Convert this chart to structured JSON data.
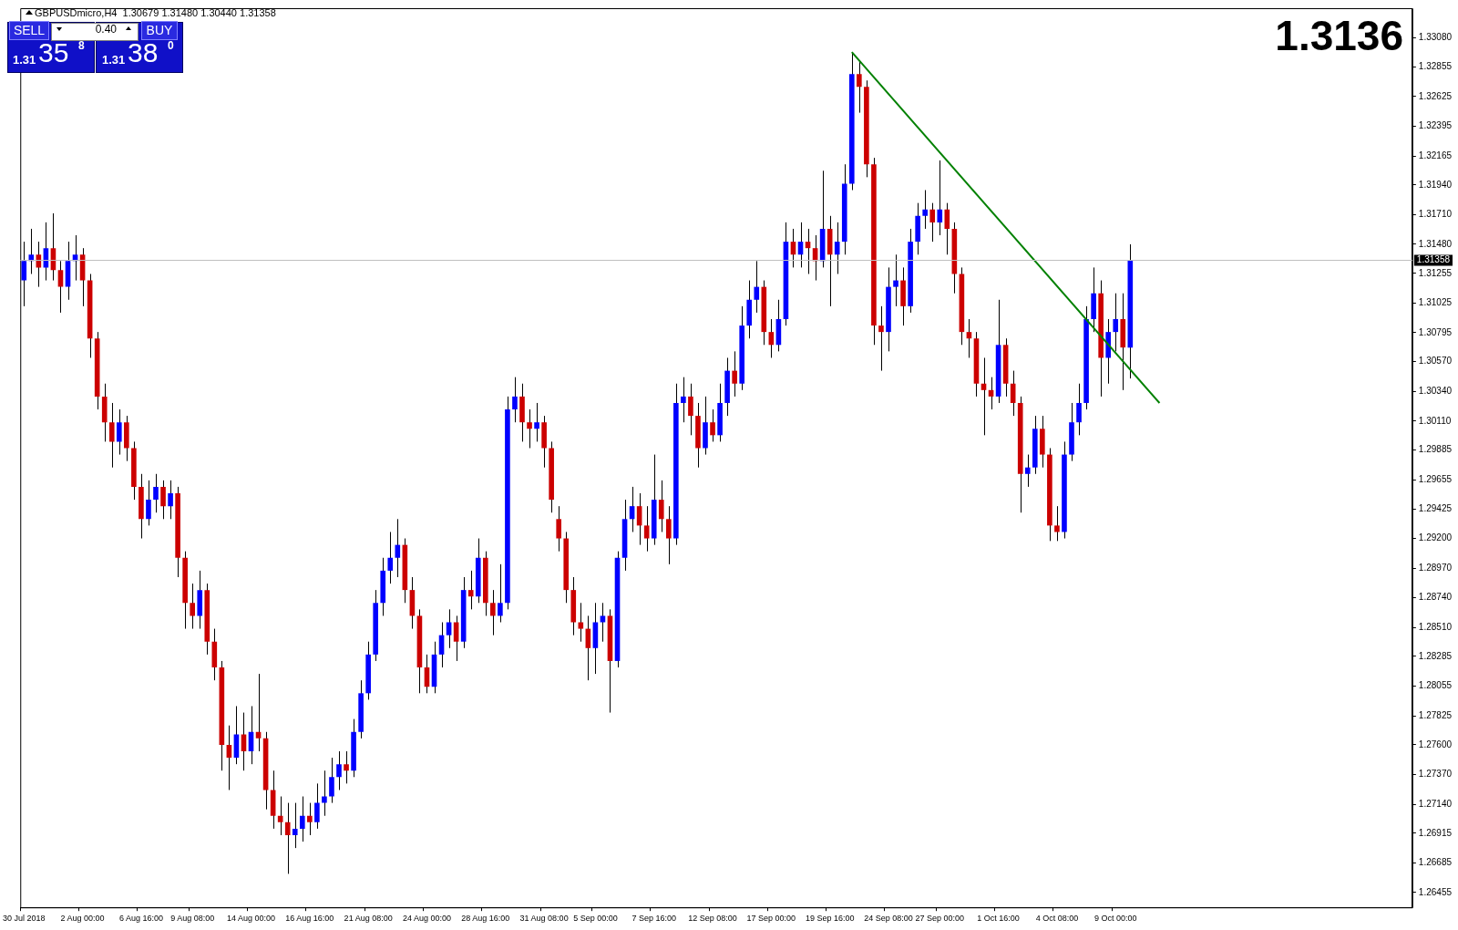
{
  "chart_data": {
    "type": "candlestick",
    "title": "GBPUSDmicro,H4  1.30679 1.31480 1.30440 1.31358",
    "categories": [
      "30 Jul 2018",
      null,
      null,
      null,
      null,
      null,
      null,
      null,
      "2 Aug 00:00",
      null,
      null,
      null,
      null,
      null,
      null,
      null,
      "6 Aug 16:00",
      null,
      null,
      null,
      null,
      null,
      null,
      "9 Aug 08:00",
      null,
      null,
      null,
      null,
      null,
      null,
      null,
      "14 Aug 00:00",
      null,
      null,
      null,
      null,
      null,
      null,
      null,
      "16 Aug 16:00",
      null,
      null,
      null,
      null,
      null,
      null,
      null,
      "21 Aug 08:00",
      null,
      null,
      null,
      null,
      null,
      null,
      null,
      "24 Aug 00:00",
      null,
      null,
      null,
      null,
      null,
      null,
      null,
      "28 Aug 16:00",
      null,
      null,
      null,
      null,
      null,
      null,
      null,
      "31 Aug 08:00",
      null,
      null,
      null,
      null,
      null,
      null,
      "5 Sep 00:00",
      null,
      null,
      null,
      null,
      null,
      null,
      null,
      "7 Sep 16:00",
      null,
      null,
      null,
      null,
      null,
      null,
      null,
      "12 Sep 08:00",
      null,
      null,
      null,
      null,
      null,
      null,
      null,
      "17 Sep 00:00",
      null,
      null,
      null,
      null,
      null,
      null,
      null,
      "19 Sep 16:00",
      null,
      null,
      null,
      null,
      null,
      null,
      null,
      "24 Sep 08:00",
      null,
      null,
      null,
      null,
      null,
      null,
      "27 Sep 00:00",
      null,
      null,
      null,
      null,
      null,
      null,
      null,
      "1 Oct 16:00",
      null,
      null,
      null,
      null,
      null,
      null,
      null,
      "4 Oct 08:00",
      null,
      null,
      null,
      null,
      null,
      null,
      null,
      "9 Oct 00:00",
      null,
      null,
      null,
      null,
      null,
      null,
      null,
      null,
      null,
      null,
      null,
      null,
      null,
      null,
      null,
      null,
      null,
      null,
      null,
      null,
      null,
      null,
      null,
      null,
      null,
      null,
      null,
      null,
      null,
      null,
      null,
      null,
      null,
      null,
      null,
      null,
      null,
      null,
      null,
      null
    ],
    "ohlc": [
      [
        1.312,
        1.315,
        1.31,
        1.3135
      ],
      [
        1.3135,
        1.316,
        1.3125,
        1.314
      ],
      [
        1.314,
        1.315,
        1.3115,
        1.313
      ],
      [
        1.313,
        1.3165,
        1.312,
        1.3145
      ],
      [
        1.3145,
        1.3172,
        1.312,
        1.3128
      ],
      [
        1.3128,
        1.3135,
        1.3095,
        1.3115
      ],
      [
        1.3115,
        1.315,
        1.3105,
        1.3135
      ],
      [
        1.3135,
        1.3155,
        1.312,
        1.314
      ],
      [
        1.314,
        1.3145,
        1.31,
        1.312
      ],
      [
        1.312,
        1.3125,
        1.306,
        1.3075
      ],
      [
        1.3075,
        1.308,
        1.302,
        1.303
      ],
      [
        1.303,
        1.304,
        1.2995,
        1.301
      ],
      [
        1.301,
        1.3025,
        1.2975,
        1.2995
      ],
      [
        1.2995,
        1.302,
        1.2985,
        1.301
      ],
      [
        1.301,
        1.3015,
        1.298,
        1.299
      ],
      [
        1.299,
        1.2995,
        1.295,
        1.296
      ],
      [
        1.296,
        1.297,
        1.292,
        1.2935
      ],
      [
        1.2935,
        1.2965,
        1.293,
        1.295
      ],
      [
        1.295,
        1.297,
        1.294,
        1.296
      ],
      [
        1.296,
        1.2965,
        1.2935,
        1.2945
      ],
      [
        1.2945,
        1.2965,
        1.2935,
        1.2955
      ],
      [
        1.2955,
        1.296,
        1.289,
        1.2905
      ],
      [
        1.2905,
        1.291,
        1.285,
        1.287
      ],
      [
        1.287,
        1.2885,
        1.285,
        1.286
      ],
      [
        1.286,
        1.2895,
        1.285,
        1.288
      ],
      [
        1.288,
        1.2885,
        1.283,
        1.284
      ],
      [
        1.284,
        1.285,
        1.281,
        1.282
      ],
      [
        1.282,
        1.2825,
        1.274,
        1.276
      ],
      [
        1.276,
        1.2775,
        1.2725,
        1.275
      ],
      [
        1.275,
        1.279,
        1.2745,
        1.2768
      ],
      [
        1.2768,
        1.2785,
        1.274,
        1.2755
      ],
      [
        1.2755,
        1.279,
        1.2745,
        1.277
      ],
      [
        1.277,
        1.2815,
        1.2755,
        1.2765
      ],
      [
        1.2765,
        1.277,
        1.271,
        1.2725
      ],
      [
        1.2725,
        1.274,
        1.2695,
        1.2705
      ],
      [
        1.2705,
        1.272,
        1.269,
        1.27
      ],
      [
        1.27,
        1.2715,
        1.266,
        1.269
      ],
      [
        1.269,
        1.2715,
        1.268,
        1.2695
      ],
      [
        1.2695,
        1.272,
        1.2685,
        1.2705
      ],
      [
        1.2705,
        1.2715,
        1.269,
        1.27
      ],
      [
        1.27,
        1.273,
        1.2695,
        1.2715
      ],
      [
        1.2715,
        1.274,
        1.2705,
        1.272
      ],
      [
        1.272,
        1.275,
        1.2715,
        1.2735
      ],
      [
        1.2735,
        1.2755,
        1.2725,
        1.2745
      ],
      [
        1.2745,
        1.2755,
        1.273,
        1.274
      ],
      [
        1.274,
        1.278,
        1.2735,
        1.277
      ],
      [
        1.277,
        1.281,
        1.2765,
        1.28
      ],
      [
        1.28,
        1.284,
        1.2795,
        1.283
      ],
      [
        1.283,
        1.288,
        1.2825,
        1.287
      ],
      [
        1.287,
        1.2905,
        1.286,
        1.2895
      ],
      [
        1.2895,
        1.2925,
        1.2885,
        1.2905
      ],
      [
        1.2905,
        1.2935,
        1.289,
        1.2915
      ],
      [
        1.2915,
        1.292,
        1.287,
        1.288
      ],
      [
        1.288,
        1.289,
        1.285,
        1.286
      ],
      [
        1.286,
        1.2865,
        1.28,
        1.282
      ],
      [
        1.282,
        1.283,
        1.28,
        1.2805
      ],
      [
        1.2805,
        1.284,
        1.28,
        1.283
      ],
      [
        1.283,
        1.2855,
        1.282,
        1.2845
      ],
      [
        1.2845,
        1.2865,
        1.2835,
        1.2855
      ],
      [
        1.2855,
        1.286,
        1.2825,
        1.284
      ],
      [
        1.284,
        1.289,
        1.2835,
        1.288
      ],
      [
        1.288,
        1.2895,
        1.2865,
        1.2875
      ],
      [
        1.2875,
        1.292,
        1.287,
        1.2905
      ],
      [
        1.2905,
        1.291,
        1.286,
        1.287
      ],
      [
        1.287,
        1.288,
        1.2845,
        1.286
      ],
      [
        1.286,
        1.29,
        1.2855,
        1.287
      ],
      [
        1.287,
        1.303,
        1.2865,
        1.302
      ],
      [
        1.302,
        1.3045,
        1.301,
        1.303
      ],
      [
        1.303,
        1.304,
        1.2995,
        1.301
      ],
      [
        1.301,
        1.302,
        1.299,
        1.3005
      ],
      [
        1.3005,
        1.3025,
        1.2995,
        1.301
      ],
      [
        1.301,
        1.3015,
        1.2975,
        1.299
      ],
      [
        1.299,
        1.2995,
        1.294,
        1.295
      ],
      [
        1.2935,
        1.2945,
        1.291,
        1.292
      ],
      [
        1.292,
        1.2925,
        1.287,
        1.288
      ],
      [
        1.288,
        1.289,
        1.2845,
        1.2855
      ],
      [
        1.2855,
        1.287,
        1.284,
        1.285
      ],
      [
        1.285,
        1.286,
        1.281,
        1.2835
      ],
      [
        1.2835,
        1.287,
        1.2815,
        1.2855
      ],
      [
        1.2855,
        1.287,
        1.284,
        1.286
      ],
      [
        1.286,
        1.2865,
        1.2785,
        1.2825
      ],
      [
        1.2825,
        1.291,
        1.282,
        1.2905
      ],
      [
        1.2905,
        1.295,
        1.2895,
        1.2935
      ],
      [
        1.2935,
        1.296,
        1.2925,
        1.2945
      ],
      [
        1.2945,
        1.2955,
        1.2915,
        1.293
      ],
      [
        1.293,
        1.2945,
        1.291,
        1.292
      ],
      [
        1.292,
        1.2985,
        1.2915,
        1.295
      ],
      [
        1.295,
        1.2965,
        1.2925,
        1.2935
      ],
      [
        1.2935,
        1.2945,
        1.29,
        1.292
      ],
      [
        1.292,
        1.304,
        1.2915,
        1.3025
      ],
      [
        1.3025,
        1.3045,
        1.301,
        1.303
      ],
      [
        1.303,
        1.304,
        1.3,
        1.3015
      ],
      [
        1.3015,
        1.3025,
        1.2975,
        1.299
      ],
      [
        1.299,
        1.303,
        1.2985,
        1.301
      ],
      [
        1.301,
        1.302,
        1.2995,
        1.3
      ],
      [
        1.3,
        1.304,
        1.2995,
        1.3025
      ],
      [
        1.3025,
        1.306,
        1.3015,
        1.305
      ],
      [
        1.305,
        1.3065,
        1.303,
        1.304
      ],
      [
        1.304,
        1.31,
        1.3035,
        1.3085
      ],
      [
        1.3085,
        1.312,
        1.3075,
        1.3105
      ],
      [
        1.3105,
        1.3135,
        1.3095,
        1.3115
      ],
      [
        1.3115,
        1.312,
        1.307,
        1.308
      ],
      [
        1.308,
        1.309,
        1.306,
        1.307
      ],
      [
        1.307,
        1.3105,
        1.3065,
        1.309
      ],
      [
        1.309,
        1.3165,
        1.3085,
        1.315
      ],
      [
        1.315,
        1.316,
        1.313,
        1.314
      ],
      [
        1.314,
        1.3165,
        1.313,
        1.315
      ],
      [
        1.315,
        1.316,
        1.3125,
        1.3145
      ],
      [
        1.3145,
        1.3155,
        1.312,
        1.3135
      ],
      [
        1.3135,
        1.3205,
        1.313,
        1.316
      ],
      [
        1.316,
        1.317,
        1.31,
        1.314
      ],
      [
        1.314,
        1.3165,
        1.3125,
        1.315
      ],
      [
        1.315,
        1.321,
        1.314,
        1.3195
      ],
      [
        1.3195,
        1.3297,
        1.319,
        1.328
      ],
      [
        1.328,
        1.329,
        1.325,
        1.327
      ],
      [
        1.327,
        1.3275,
        1.32,
        1.321
      ],
      [
        1.321,
        1.3215,
        1.307,
        1.3085
      ],
      [
        1.3085,
        1.31,
        1.305,
        1.308
      ],
      [
        1.308,
        1.313,
        1.3065,
        1.3115
      ],
      [
        1.3115,
        1.314,
        1.31,
        1.312
      ],
      [
        1.312,
        1.313,
        1.3085,
        1.31
      ],
      [
        1.31,
        1.316,
        1.3095,
        1.315
      ],
      [
        1.315,
        1.318,
        1.314,
        1.317
      ],
      [
        1.317,
        1.319,
        1.316,
        1.3175
      ],
      [
        1.3175,
        1.318,
        1.315,
        1.3165
      ],
      [
        1.3165,
        1.3213,
        1.3155,
        1.3175
      ],
      [
        1.3175,
        1.318,
        1.314,
        1.316
      ],
      [
        1.316,
        1.3165,
        1.311,
        1.3125
      ],
      [
        1.3125,
        1.313,
        1.307,
        1.308
      ],
      [
        1.308,
        1.309,
        1.306,
        1.3075
      ],
      [
        1.3075,
        1.308,
        1.303,
        1.304
      ],
      [
        1.304,
        1.306,
        1.3,
        1.3035
      ],
      [
        1.3035,
        1.3045,
        1.302,
        1.303
      ],
      [
        1.303,
        1.3105,
        1.3025,
        1.307
      ],
      [
        1.307,
        1.3075,
        1.303,
        1.304
      ],
      [
        1.304,
        1.305,
        1.3015,
        1.3025
      ],
      [
        1.3025,
        1.303,
        1.294,
        1.297
      ],
      [
        1.297,
        1.2985,
        1.296,
        1.2975
      ],
      [
        1.2975,
        1.3015,
        1.297,
        1.3005
      ],
      [
        1.3005,
        1.3015,
        1.2975,
        1.2985
      ],
      [
        1.2985,
        1.299,
        1.2918,
        1.293
      ],
      [
        1.293,
        1.2945,
        1.2918,
        1.2925
      ],
      [
        1.2925,
        1.2995,
        1.292,
        1.2985
      ],
      [
        1.2985,
        1.3025,
        1.298,
        1.301
      ],
      [
        1.301,
        1.304,
        1.3,
        1.3025
      ],
      [
        1.3025,
        1.31,
        1.302,
        1.309
      ],
      [
        1.309,
        1.313,
        1.308,
        1.311
      ],
      [
        1.311,
        1.312,
        1.303,
        1.306
      ],
      [
        1.306,
        1.309,
        1.304,
        1.308
      ],
      [
        1.308,
        1.311,
        1.3065,
        1.309
      ],
      [
        1.309,
        1.311,
        1.3035,
        1.3068
      ],
      [
        1.30679,
        1.3148,
        1.3044,
        1.31358
      ],
      null,
      null,
      null,
      null,
      null,
      null,
      null,
      null,
      null,
      null,
      null,
      null,
      null,
      null,
      null,
      null,
      null,
      null,
      null,
      null,
      null,
      null,
      null,
      null,
      null,
      null,
      null,
      null,
      null,
      null,
      null,
      null,
      null,
      null,
      null,
      null,
      null,
      null
    ],
    "series": [
      {
        "type": "line",
        "color": "#008000",
        "values": [
          null,
          null,
          null,
          null,
          null,
          null,
          null,
          null,
          null,
          null,
          null,
          null,
          null,
          null,
          null,
          null,
          null,
          null,
          null,
          null,
          null,
          null,
          null,
          null,
          null,
          null,
          null,
          null,
          null,
          null,
          null,
          null,
          null,
          null,
          null,
          null,
          null,
          null,
          null,
          null,
          null,
          null,
          null,
          null,
          null,
          null,
          null,
          null,
          null,
          null,
          null,
          null,
          null,
          null,
          null,
          null,
          null,
          null,
          null,
          null,
          null,
          null,
          null,
          null,
          null,
          null,
          null,
          null,
          null,
          null,
          null,
          null,
          null,
          null,
          null,
          null,
          null,
          null,
          null,
          null,
          null,
          null,
          null,
          null,
          null,
          null,
          null,
          null,
          null,
          null,
          null,
          null,
          null,
          null,
          null,
          null,
          null,
          null,
          null,
          null,
          null,
          null,
          null,
          null,
          null,
          null,
          null,
          null,
          null,
          null,
          null,
          null,
          null,
          1.3297,
          null,
          null,
          null,
          null,
          null,
          null,
          null,
          null,
          null,
          null,
          null,
          null,
          null,
          null,
          null,
          null,
          null,
          null,
          null,
          null,
          null,
          null,
          null,
          null,
          null,
          null,
          null,
          null,
          null,
          null,
          null,
          null,
          null,
          null,
          null,
          null,
          null,
          null,
          null,
          null,
          null,
          1.3025,
          null,
          null,
          null,
          null,
          null,
          null,
          null,
          null,
          null,
          null,
          null,
          null,
          null,
          null,
          null,
          null,
          null,
          null,
          null,
          null,
          null,
          null,
          null,
          null,
          null,
          null,
          null,
          null,
          null,
          null,
          null,
          null,
          null,
          null
        ]
      }
    ],
    "ylim": [
      1.2634,
      1.3331
    ],
    "yticks": [
      {
        "value": 1.3308,
        "label": "1.33080"
      },
      1.32855,
      1.32625,
      1.32395,
      1.32165,
      {
        "value": 1.3194,
        "label": "1.31940"
      },
      {
        "value": 1.3171,
        "label": "1.31710"
      },
      {
        "value": 1.3148,
        "label": "1.31480"
      },
      1.31255,
      1.31025,
      1.30795,
      {
        "value": 1.3057,
        "label": "1.30570"
      },
      {
        "value": 1.3034,
        "label": "1.30340"
      },
      {
        "value": 1.3011,
        "label": "1.30110"
      },
      1.29885,
      1.29655,
      1.29425,
      {
        "value": 1.292,
        "label": "1.29200"
      },
      {
        "value": 1.2897,
        "label": "1.28970"
      },
      {
        "value": 1.2874,
        "label": "1.28740"
      },
      {
        "value": 1.2851,
        "label": "1.28510"
      },
      1.28285,
      1.28055,
      1.27825,
      {
        "value": 1.276,
        "label": "1.27600"
      },
      {
        "value": 1.2737,
        "label": "1.27370"
      },
      {
        "value": 1.2714,
        "label": "1.27140"
      },
      1.26915,
      1.26685,
      1.26455
    ],
    "ref_lines": [
      {
        "axis": "y",
        "value": 1.31358,
        "label": "1.31358",
        "color": "#c0c0c0"
      }
    ],
    "annotations": [
      "1.3136",
      "SELL",
      "BUY",
      "0.40",
      "1.31",
      "35",
      "8",
      "1.31",
      "38",
      "0"
    ],
    "grid": false,
    "legend": false
  }
}
